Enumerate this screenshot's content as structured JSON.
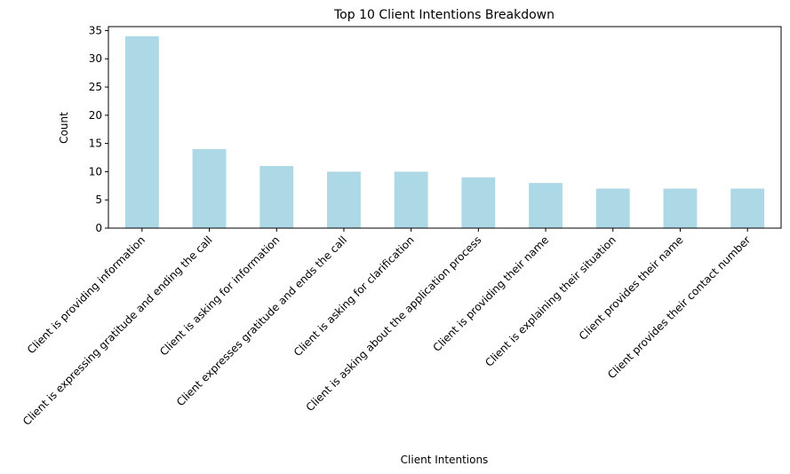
{
  "chart_data": {
    "type": "bar",
    "title": "Top 10 Client Intentions Breakdown",
    "xlabel": "Client Intentions",
    "ylabel": "Count",
    "categories": [
      "Client is providing information",
      "Client is expressing gratitude and ending the call",
      "Client is asking for information",
      "Client expresses gratitude and ends the call",
      "Client is asking for clarification",
      "Client is asking about the application process",
      "Client is providing their name",
      "Client is explaining their situation",
      "Client provides their name",
      "Client provides their contact number"
    ],
    "values": [
      34,
      14,
      11,
      10,
      10,
      9,
      8,
      7,
      7,
      7
    ],
    "ylim": [
      0,
      35.7
    ],
    "yticks": [
      0,
      5,
      10,
      15,
      20,
      25,
      30,
      35
    ],
    "grid": false,
    "legend": "none",
    "bar_color": "#add8e6"
  }
}
